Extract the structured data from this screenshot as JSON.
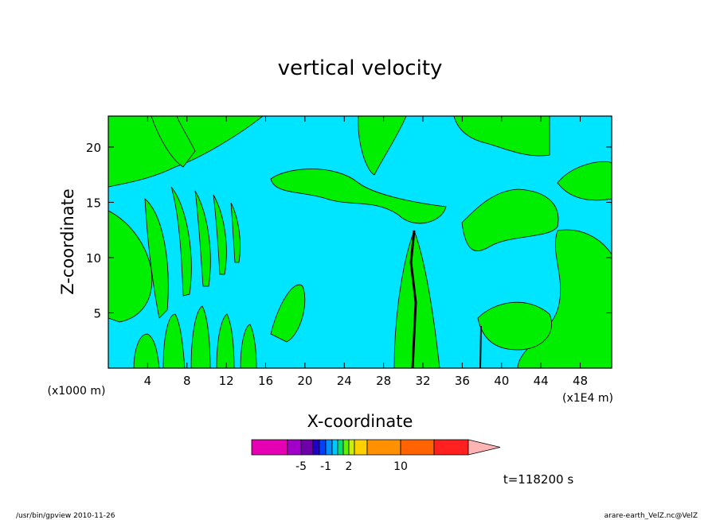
{
  "chart_data": {
    "type": "contour",
    "title": "vertical velocity",
    "x_label": "X-coordinate",
    "y_label": "Z-coordinate",
    "x_unit_note": "(x1E4 m)",
    "y_unit_note": "(x1000 m)",
    "xlim": [
      0,
      51.2
    ],
    "ylim": [
      0,
      22.8
    ],
    "xticks": [
      4,
      8,
      12,
      16,
      20,
      24,
      28,
      32,
      36,
      40,
      44,
      48
    ],
    "yticks": [
      5,
      10,
      15,
      20
    ],
    "background_color": "#00e5ff",
    "region_color": "#00ee00",
    "colorbar": {
      "colors": [
        "#e600b4",
        "#a000c8",
        "#6e00aa",
        "#1e00c8",
        "#0040ff",
        "#0090ff",
        "#00c8ff",
        "#00e070",
        "#60f000",
        "#c8f000",
        "#ffd000",
        "#ff9000",
        "#ff6400",
        "#ff2020",
        "#ff7878",
        "#ffb4b4"
      ],
      "ticks": [
        -5,
        -1,
        2,
        10
      ]
    },
    "time_label": "t=118200 s",
    "footer_left": "/usr/bin/gpview   2010-11-26",
    "footer_right": "arare-earth_VelZ.nc@VelZ"
  }
}
